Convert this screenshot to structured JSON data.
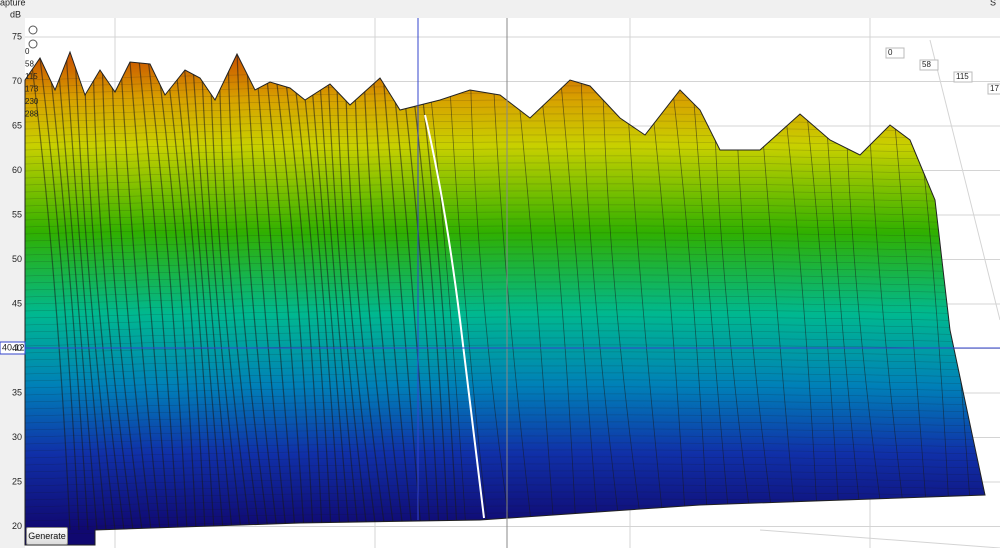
{
  "header": {
    "title": "apture",
    "right": "S"
  },
  "y_axis": {
    "unit": "dB",
    "ticks": [
      "75",
      "70",
      "65",
      "60",
      "55",
      "50",
      "45",
      "40",
      "35",
      "30",
      "25",
      "20"
    ]
  },
  "cursor": {
    "value": "40.12"
  },
  "left_slice_labels": [
    "0",
    "58",
    "115",
    "173",
    "230",
    "288"
  ],
  "right_slice_labels": [
    "0",
    "58",
    "115",
    "17"
  ],
  "button": {
    "label": "Generate"
  }
}
